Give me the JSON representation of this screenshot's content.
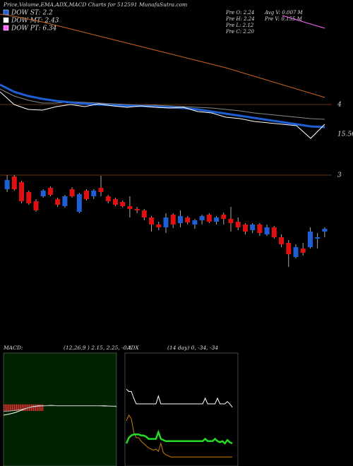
{
  "header": {
    "title": "Price,Volume,EMA,ADX,MACD Charts for 512591 MunafaSutra.com",
    "legend": [
      "DOW ST: 2.2",
      "DOW MT: 2.43",
      "DOW PT: 6.34"
    ],
    "legend_colors": [
      "#1f5fd6",
      "#ffffff",
      "#ff66ff"
    ],
    "stats": [
      "Pre  O: 2.24",
      "Pre  H: 2.24",
      "Pre  L: 2.12",
      "Pre  C: 2.20",
      "Avg V: 0.007 M",
      "Pre  V: 0.155 M"
    ],
    "annotation": "15.56"
  },
  "chart_data": [
    {
      "type": "candlestick",
      "open": [
        2.8,
        2.98,
        2.9,
        2.76,
        2.63,
        2.7,
        2.82,
        2.66,
        2.56,
        2.8,
        2.48,
        2.78,
        2.7,
        2.82,
        2.7,
        2.66,
        2.62,
        2.56,
        2.52,
        2.5,
        2.4,
        2.3,
        2.26,
        2.44,
        2.32,
        2.4,
        2.3,
        2.36,
        2.44,
        2.34,
        2.44,
        2.38,
        2.34,
        2.3,
        2.22,
        2.3,
        2.16,
        2.26,
        2.12,
        2.04,
        1.84,
        1.96,
        1.98,
        2.1,
        2.2
      ],
      "high": [
        3.0,
        3.0,
        2.92,
        2.78,
        2.66,
        2.8,
        2.84,
        2.68,
        2.72,
        2.83,
        2.75,
        2.8,
        2.8,
        2.99,
        2.72,
        2.68,
        2.64,
        2.7,
        2.55,
        2.52,
        2.42,
        2.34,
        2.46,
        2.46,
        2.5,
        2.42,
        2.38,
        2.44,
        2.46,
        2.42,
        2.47,
        2.55,
        2.4,
        2.32,
        2.32,
        2.32,
        2.3,
        2.28,
        2.16,
        2.08,
        2.02,
        2.04,
        2.26,
        2.18,
        2.26
      ],
      "low": [
        2.76,
        2.78,
        2.6,
        2.58,
        2.48,
        2.68,
        2.7,
        2.55,
        2.54,
        2.68,
        2.46,
        2.64,
        2.66,
        2.7,
        2.6,
        2.56,
        2.54,
        2.4,
        2.46,
        2.36,
        2.2,
        2.22,
        2.18,
        2.25,
        2.26,
        2.3,
        2.24,
        2.3,
        2.32,
        2.3,
        2.3,
        2.2,
        2.22,
        2.16,
        2.18,
        2.14,
        2.14,
        2.1,
        1.98,
        1.7,
        1.82,
        1.86,
        1.96,
        1.96,
        2.12
      ],
      "close": [
        2.93,
        2.8,
        2.63,
        2.6,
        2.5,
        2.78,
        2.72,
        2.58,
        2.7,
        2.7,
        2.73,
        2.66,
        2.78,
        2.76,
        2.63,
        2.58,
        2.56,
        2.52,
        2.5,
        2.4,
        2.3,
        2.26,
        2.4,
        2.3,
        2.42,
        2.33,
        2.36,
        2.42,
        2.34,
        2.4,
        2.38,
        2.32,
        2.26,
        2.2,
        2.3,
        2.18,
        2.26,
        2.12,
        2.02,
        1.88,
        1.98,
        1.9,
        2.2,
        2.12,
        2.24
      ],
      "up_color": "#1f5fd6",
      "down_color": "#e01010",
      "lines": [
        {
          "color": "#c8641e",
          "values": [
            5.28,
            5.25,
            5.21,
            5.17,
            5.12,
            5.07,
            5.02,
            4.97,
            4.92,
            4.87,
            4.82,
            4.77,
            4.72,
            4.67,
            4.62,
            4.57,
            4.52,
            4.46,
            4.4,
            4.34,
            4.28,
            4.22,
            4.16,
            4.1
          ]
        },
        {
          "color": "#888888",
          "values": [
            4.22,
            4.12,
            4.06,
            4.02,
            4.02,
            4.04,
            4.03,
            4.02,
            4.01,
            4.0,
            3.99,
            3.99,
            3.98,
            3.97,
            3.96,
            3.95,
            3.93,
            3.91,
            3.88,
            3.86,
            3.84,
            3.82,
            3.8,
            3.79
          ]
        },
        {
          "color": "#1f5fd6",
          "values": [
            4.28,
            4.18,
            4.12,
            4.08,
            4.05,
            4.03,
            4.01,
            4.0,
            3.99,
            3.98,
            3.98,
            3.97,
            3.96,
            3.95,
            3.93,
            3.9,
            3.87,
            3.84,
            3.81,
            3.78,
            3.75,
            3.72,
            3.69,
            3.68
          ]
        },
        {
          "color": "#ffffff",
          "values": [
            4.18,
            4.0,
            3.93,
            3.92,
            3.97,
            4.0,
            3.97,
            4.01,
            3.98,
            3.96,
            3.98,
            3.96,
            3.95,
            3.96,
            3.9,
            3.88,
            3.82,
            3.8,
            3.76,
            3.74,
            3.72,
            3.7,
            3.52,
            3.72
          ]
        },
        {
          "color": "#ff66ff",
          "values": [
            null,
            null,
            null,
            null,
            null,
            null,
            null,
            null,
            null,
            null,
            null,
            null,
            null,
            null,
            null,
            null,
            null,
            null,
            null,
            null,
            5.26,
            5.2,
            5.14,
            5.08
          ]
        }
      ],
      "ylim": [
        0.58,
        5.48
      ],
      "yticks": [
        3,
        4
      ]
    },
    {
      "type": "macd",
      "title": "MACD:",
      "subtitle": "(12,26,9 ) 2.15, 2.25, -0.1",
      "background": "#002200",
      "histogram": [
        -0.1,
        -0.1,
        -0.1,
        -0.1,
        -0.1,
        -0.1,
        -0.1,
        -0.1,
        -0.1,
        -0.1,
        -0.1,
        -0.1,
        -0.1,
        -0.1,
        -0.1,
        -0.1,
        -0.1,
        -0.1,
        -0.1,
        -0.1,
        -0.1,
        -0.1,
        -0.1,
        -0.1,
        -0.1,
        -0.1,
        -0.1,
        -0.1,
        -0.1,
        -0.1,
        -0.1,
        -0.1,
        -0.1,
        -0.1,
        -0.1,
        -0.1,
        -0.1,
        -0.1
      ],
      "histogram_color": "#e03030",
      "series": [
        {
          "color": "#ffffff",
          "values": [
            -0.25,
            -0.22,
            -0.18,
            -0.12,
            -0.06,
            -0.02,
            0,
            0,
            0.01,
            0,
            0,
            0,
            0,
            0,
            0,
            0,
            0,
            0,
            -0.01,
            -0.02
          ]
        },
        {
          "color": "#aaaaaa",
          "values": [
            -0.15,
            -0.14,
            -0.12,
            -0.1,
            -0.06,
            -0.03,
            -0.01,
            0,
            0,
            0,
            0,
            0,
            0,
            0,
            0,
            0,
            0,
            -0.01,
            -0.01,
            -0.01
          ]
        }
      ],
      "ylim": [
        -1.6,
        1.4
      ]
    },
    {
      "type": "adx",
      "title": "ADX",
      "subtitle": "(14 day) 0, -34, -34",
      "series": [
        {
          "color": "#ffffff",
          "values": [
            68,
            66,
            66,
            60,
            55,
            55,
            55,
            55,
            55,
            55,
            55,
            55,
            55,
            62,
            55,
            55,
            55,
            55,
            55,
            55,
            55,
            55,
            55,
            55,
            55,
            55,
            55,
            55,
            55,
            55,
            55,
            55,
            60,
            55,
            55,
            55,
            55,
            60,
            55,
            55,
            55,
            57,
            55,
            52
          ]
        },
        {
          "color": "#d07a10",
          "values": [
            40,
            45,
            42,
            30,
            25,
            25,
            22,
            20,
            18,
            16,
            15,
            14,
            15,
            13,
            20,
            12,
            10,
            9,
            8,
            8,
            8,
            8,
            8,
            8,
            8,
            8,
            8,
            8,
            8,
            8,
            8,
            8,
            8,
            8,
            8,
            8,
            8,
            8,
            8,
            8,
            8,
            8,
            8,
            8
          ]
        },
        {
          "color": "#22dd22",
          "values": [
            20,
            25,
            27,
            28,
            28,
            28,
            27,
            27,
            26,
            24,
            24,
            24,
            24,
            30,
            24,
            23,
            22,
            22,
            22,
            22,
            22,
            22,
            22,
            22,
            22,
            22,
            22,
            22,
            22,
            22,
            22,
            22,
            24,
            22,
            22,
            22,
            24,
            22,
            21,
            22,
            20,
            23,
            21,
            20
          ]
        }
      ],
      "ylim": [
        0,
        100
      ]
    }
  ]
}
